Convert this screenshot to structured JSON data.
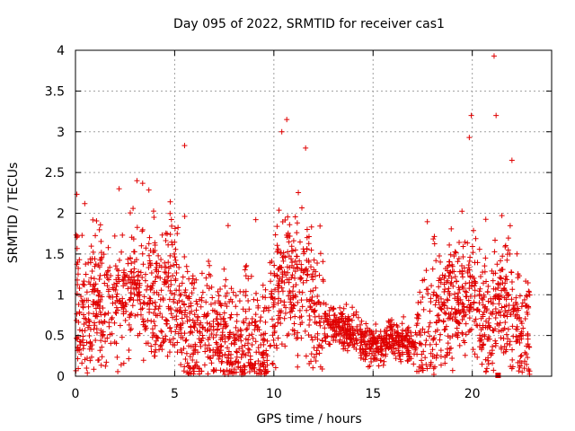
{
  "chart_data": {
    "type": "scatter",
    "title": "Day 095 of 2022, SRMTID for receiver cas1",
    "xlabel": "GPS time / hours",
    "ylabel": "SRMTID / TECUs",
    "xlim": [
      0,
      24
    ],
    "ylim": [
      0,
      4
    ],
    "xticks": [
      0,
      5,
      10,
      15,
      20
    ],
    "yticks": [
      0,
      0.5,
      1,
      1.5,
      2,
      2.5,
      3,
      3.5,
      4
    ],
    "xtick_labels": [
      "0",
      "5",
      "10",
      "15",
      "20"
    ],
    "ytick_labels": [
      "0",
      "0.5",
      "1",
      "1.5",
      "2",
      "2.5",
      "3",
      "3.5",
      "4"
    ],
    "grid": true,
    "marker": "+",
    "color": "#e00000",
    "series": [
      {
        "name": "SRMTID",
        "envelope": {
          "x": [
            0,
            0.5,
            1,
            1.5,
            2,
            2.5,
            3,
            3.5,
            4,
            4.5,
            5,
            5.5,
            6,
            6.5,
            7,
            7.5,
            8,
            8.5,
            9,
            9.5,
            10,
            10.5,
            11,
            11.5,
            12,
            12.5,
            13,
            13.5,
            14,
            14.5,
            15,
            15.5,
            16,
            16.5,
            17,
            17.5,
            18,
            18.5,
            19,
            19.5,
            20,
            20.5,
            21,
            21.5,
            22,
            22.5,
            22.9
          ],
          "y": [
            0.85,
            0.75,
            0.9,
            0.75,
            0.9,
            1.0,
            1.1,
            0.95,
            1.0,
            0.8,
            1.05,
            0.6,
            0.3,
            0.55,
            0.4,
            0.6,
            0.25,
            0.5,
            0.4,
            0.3,
            0.8,
            1.4,
            1.0,
            1.15,
            0.95,
            0.7,
            0.65,
            0.6,
            0.55,
            0.4,
            0.35,
            0.4,
            0.45,
            0.42,
            0.35,
            0.55,
            0.75,
            0.8,
            0.9,
            0.95,
            1.1,
            0.8,
            0.6,
            0.95,
            0.7,
            0.55,
            0.6
          ]
        },
        "highlights": [
          {
            "x": 5.5,
            "y": 2.83
          },
          {
            "x": 10.65,
            "y": 3.15
          },
          {
            "x": 10.4,
            "y": 3.0
          },
          {
            "x": 11.6,
            "y": 2.8
          },
          {
            "x": 3.1,
            "y": 2.4
          },
          {
            "x": 2.2,
            "y": 2.3
          },
          {
            "x": 19.95,
            "y": 3.2
          },
          {
            "x": 19.85,
            "y": 2.93
          },
          {
            "x": 21.1,
            "y": 3.93
          },
          {
            "x": 21.2,
            "y": 3.2
          },
          {
            "x": 22.0,
            "y": 2.65
          },
          {
            "x": 21.3,
            "y": 0.0
          }
        ]
      }
    ]
  }
}
